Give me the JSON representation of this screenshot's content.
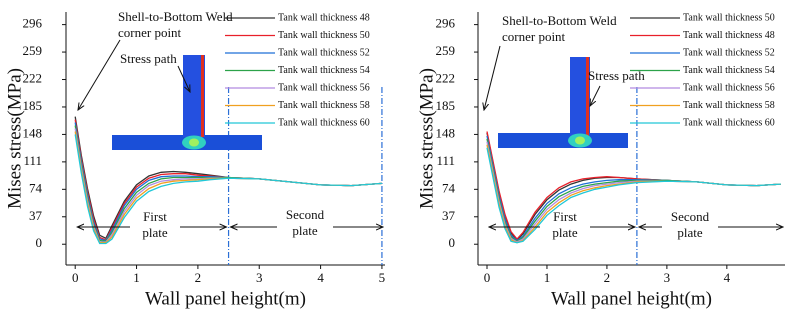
{
  "chart_data": [
    {
      "type": "line",
      "xlabel": "Wall panel height(m)",
      "ylabel": "Mises stress(MPa)",
      "xlim": [
        -0.15,
        5.05
      ],
      "ylim": [
        -28,
        313
      ],
      "xticks": [
        0,
        1,
        2,
        3,
        4,
        5
      ],
      "yticks": [
        0,
        37,
        74,
        111,
        148,
        185,
        222,
        259,
        296
      ],
      "dividers": [
        2.5,
        5
      ],
      "divider_color": "#2a6fd6",
      "x": [
        0,
        0.1,
        0.2,
        0.3,
        0.4,
        0.5,
        0.6,
        0.8,
        1,
        1.2,
        1.4,
        1.6,
        1.8,
        2,
        2.2,
        2.5,
        3,
        3.5,
        4,
        4.5,
        5
      ],
      "series": [
        {
          "name": "Tank wall thickness 48",
          "color": "#333333",
          "values": [
            172,
            120,
            75,
            38,
            12,
            8,
            25,
            58,
            80,
            92,
            97,
            98,
            97,
            95,
            93,
            90,
            88,
            84,
            80,
            79,
            82
          ]
        },
        {
          "name": "Tank wall thickness 50",
          "color": "#e8202a",
          "values": [
            168,
            116,
            71,
            34,
            9,
            6,
            22,
            55,
            77,
            89,
            94,
            95,
            95,
            93,
            92,
            90,
            88,
            84,
            80,
            79,
            82
          ]
        },
        {
          "name": "Tank wall thickness 52",
          "color": "#1f6fd6",
          "values": [
            164,
            112,
            67,
            30,
            7,
            5,
            19,
            52,
            74,
            86,
            91,
            92,
            92,
            91,
            91,
            90,
            88,
            84,
            80,
            79,
            82
          ]
        },
        {
          "name": "Tank wall thickness 54",
          "color": "#2ca24a",
          "values": [
            160,
            108,
            63,
            27,
            5,
            4,
            16,
            48,
            70,
            82,
            88,
            90,
            90,
            90,
            90,
            90,
            88,
            84,
            80,
            79,
            82
          ]
        },
        {
          "name": "Tank wall thickness 56",
          "color": "#b28be0",
          "values": [
            156,
            104,
            59,
            24,
            3,
            3,
            13,
            44,
            66,
            79,
            85,
            87,
            88,
            88,
            89,
            89,
            88,
            84,
            80,
            79,
            82
          ]
        },
        {
          "name": "Tank wall thickness 58",
          "color": "#f0a020",
          "values": [
            152,
            100,
            55,
            21,
            2,
            2,
            10,
            40,
            62,
            75,
            82,
            85,
            86,
            87,
            88,
            89,
            88,
            84,
            80,
            79,
            82
          ]
        },
        {
          "name": "Tank wall thickness 60",
          "color": "#20c8d8",
          "values": [
            148,
            96,
            51,
            18,
            1,
            1,
            7,
            36,
            58,
            71,
            78,
            82,
            84,
            85,
            87,
            89,
            88,
            84,
            80,
            79,
            82
          ]
        }
      ],
      "annotations": [
        {
          "lines": [
            "Shell-to-Bottom Weld",
            "corner point"
          ]
        },
        {
          "lines": [
            "Stress path"
          ]
        },
        {
          "lines": [
            "First",
            "plate"
          ]
        },
        {
          "lines": [
            "Second",
            "plate"
          ]
        }
      ]
    },
    {
      "type": "line",
      "xlabel": "Wall panel height(m)",
      "ylabel": "Mises stress(MPa)",
      "xlim": [
        -0.15,
        4.97
      ],
      "ylim": [
        -28,
        313
      ],
      "xticks": [
        0,
        1,
        2,
        3,
        4
      ],
      "yticks": [
        0,
        37,
        74,
        111,
        148,
        185,
        222,
        259,
        296
      ],
      "dividers": [
        2.5
      ],
      "divider_color": "#2a6fd6",
      "x": [
        0,
        0.1,
        0.2,
        0.3,
        0.4,
        0.5,
        0.6,
        0.8,
        1,
        1.2,
        1.4,
        1.6,
        1.8,
        2,
        2.2,
        2.5,
        3,
        3.5,
        4,
        4.5,
        4.9
      ],
      "series": [
        {
          "name": "Tank wall thickness 50",
          "color": "#333333",
          "values": [
            150,
            110,
            70,
            38,
            15,
            6,
            14,
            40,
            60,
            73,
            81,
            86,
            89,
            90,
            90,
            88,
            86,
            84,
            80,
            79,
            81
          ]
        },
        {
          "name": "Tank wall thickness 48",
          "color": "#e8202a",
          "values": [
            152,
            112,
            72,
            40,
            17,
            7,
            16,
            43,
            63,
            76,
            84,
            88,
            90,
            91,
            90,
            88,
            86,
            84,
            80,
            79,
            81
          ]
        },
        {
          "name": "Tank wall thickness 52",
          "color": "#1f6fd6",
          "values": [
            146,
            106,
            66,
            34,
            12,
            5,
            11,
            35,
            55,
            68,
            76,
            81,
            84,
            86,
            87,
            87,
            86,
            84,
            80,
            79,
            81
          ]
        },
        {
          "name": "Tank wall thickness 54",
          "color": "#2ca24a",
          "values": [
            142,
            102,
            62,
            30,
            10,
            4,
            9,
            31,
            51,
            64,
            72,
            78,
            81,
            83,
            85,
            86,
            86,
            84,
            80,
            79,
            81
          ]
        },
        {
          "name": "Tank wall thickness 56",
          "color": "#b28be0",
          "values": [
            138,
            98,
            58,
            27,
            8,
            3,
            7,
            27,
            47,
            60,
            69,
            75,
            79,
            81,
            83,
            85,
            85,
            84,
            80,
            79,
            81
          ]
        },
        {
          "name": "Tank wall thickness 58",
          "color": "#f0a020",
          "values": [
            134,
            94,
            54,
            24,
            6,
            2,
            5,
            23,
            43,
            56,
            66,
            72,
            76,
            79,
            81,
            84,
            85,
            84,
            80,
            79,
            81
          ]
        },
        {
          "name": "Tank wall thickness 60",
          "color": "#20c8d8",
          "values": [
            130,
            90,
            50,
            21,
            4,
            2,
            4,
            20,
            39,
            52,
            63,
            69,
            74,
            77,
            80,
            83,
            85,
            84,
            80,
            79,
            81
          ]
        }
      ],
      "annotations": [
        {
          "lines": [
            "Shell-to-Bottom Weld",
            "corner point"
          ]
        },
        {
          "lines": [
            "Stress path"
          ]
        },
        {
          "lines": [
            "First",
            "plate"
          ]
        },
        {
          "lines": [
            "Second",
            "plate"
          ]
        }
      ]
    }
  ]
}
